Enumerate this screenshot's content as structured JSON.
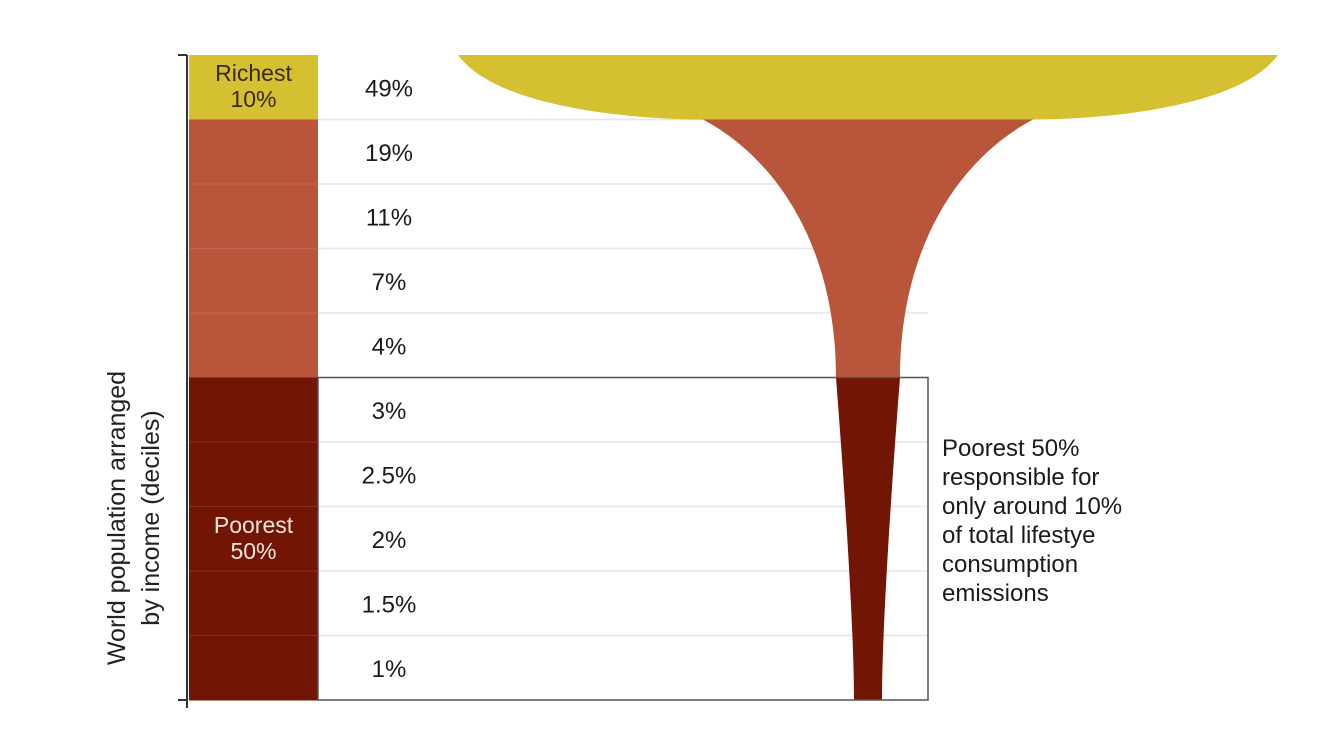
{
  "chart_data": {
    "type": "bar",
    "orientation": "horizontal-funnel",
    "ylabel": "World population arranged\nby income (deciles)",
    "categories": [
      "Richest 10%",
      "",
      "",
      "",
      "",
      "",
      "",
      "",
      "",
      ""
    ],
    "values": [
      49,
      19,
      11,
      7,
      4,
      3,
      2.5,
      2,
      1.5,
      1
    ],
    "value_labels": [
      "49%",
      "19%",
      "11%",
      "7%",
      "4%",
      "3%",
      "2.5%",
      "2%",
      "1.5%",
      "1%"
    ],
    "groups": [
      {
        "label": "Richest\n10%",
        "deciles": [
          0
        ],
        "color": "#d4c030"
      },
      {
        "label": "",
        "deciles": [
          1,
          2,
          3,
          4
        ],
        "color": "#b8553b"
      },
      {
        "label": "Poorest\n50%",
        "deciles": [
          5,
          6,
          7,
          8,
          9
        ],
        "color": "#731505"
      }
    ],
    "annotation": "Poorest 50%\nresponsible for\nonly around 10%\nof total lifestye\nconsumption\nemissions"
  }
}
